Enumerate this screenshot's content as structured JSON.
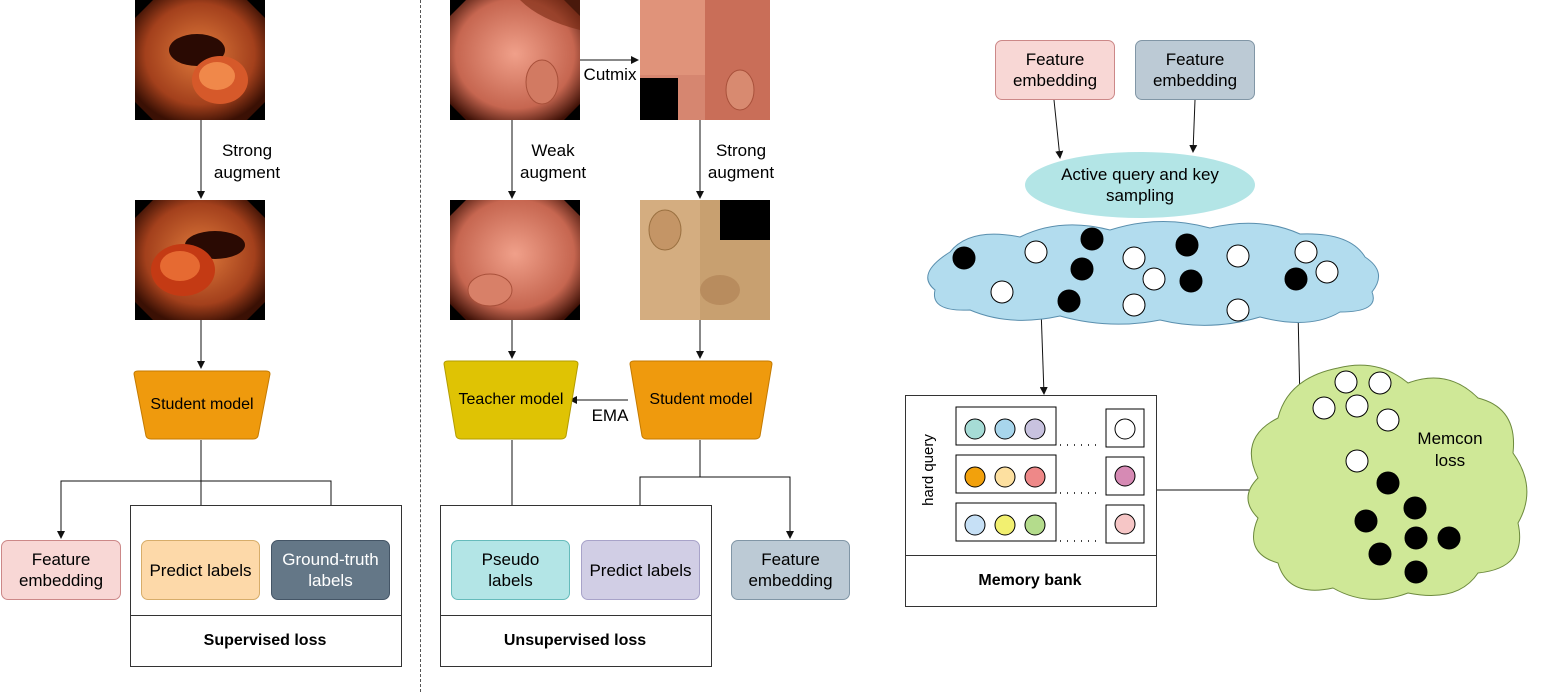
{
  "supervised": {
    "strong_augment": "Strong\naugment",
    "student_model": "Student model",
    "feature_embedding": "Feature\nembedding",
    "predict_labels": "Predict labels",
    "ground_truth_labels": "Ground-truth\nlabels",
    "loss_title": "Supervised loss"
  },
  "unsupervised": {
    "cutmix": "Cutmix",
    "weak_augment": "Weak\naugment",
    "strong_augment": "Strong\naugment",
    "teacher_model": "Teacher model",
    "student_model": "Student model",
    "ema": "EMA",
    "pseudo_labels": "Pseudo labels",
    "predict_labels": "Predict labels",
    "feature_embedding": "Feature\nembedding",
    "loss_title": "Unsupervised loss"
  },
  "memory": {
    "feature_embedding_1": "Feature\nembedding",
    "feature_embedding_2": "Feature\nembedding",
    "sampling": "Active query and key\nsampling",
    "hard_query": "hard query",
    "bank_title": "Memory bank",
    "memcon_loss": "Memcon\nloss"
  },
  "colors": {
    "pink": "#f8d7d5",
    "slate_light": "#bccad5",
    "peach": "#fdd9a9",
    "slate_dark": "#647787",
    "teal_light": "#b3e5e6",
    "lavender": "#d1cee5",
    "student_orange": "#ef9a0d",
    "teacher_yellow": "#dfc304",
    "cloud_blue": "#b2dcee",
    "cloud_green": "#cfe897"
  }
}
